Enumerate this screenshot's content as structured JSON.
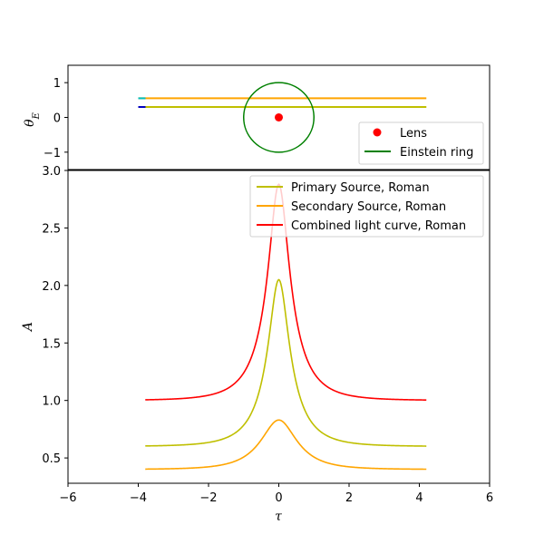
{
  "chart_data": [
    {
      "type": "line",
      "panel": "top",
      "xlabel": "",
      "ylabel": "θ_E",
      "ylabel_main": "θ",
      "ylabel_sub": "E",
      "xlim": [
        -6,
        6
      ],
      "ylim": [
        -1.5,
        1.5
      ],
      "yticks": [
        -1,
        0,
        1
      ],
      "ytick_labels": [
        "−1",
        "0",
        "1"
      ],
      "series": [
        {
          "name": "Lens",
          "kind": "point",
          "x": 0,
          "y": 0,
          "color": "#ff0000"
        },
        {
          "name": "Einstein ring",
          "kind": "circle",
          "cx": 0,
          "cy": 0,
          "r": 1,
          "color": "#008000"
        }
      ],
      "unlabeled_tracks": [
        {
          "x": [
            -4.0,
            4.2
          ],
          "y": 0.55,
          "color": "#ffa500",
          "start_color": "#00bfbf"
        },
        {
          "x": [
            -4.0,
            4.2
          ],
          "y": 0.3,
          "color": "#bfbf00",
          "start_color": "#0000bf"
        }
      ],
      "legend": {
        "placement": "lower-right",
        "entries": [
          "Lens",
          "Einstein ring"
        ]
      },
      "grid": false
    },
    {
      "type": "line",
      "panel": "bottom",
      "xlabel": "τ",
      "ylabel": "A",
      "xlim": [
        -6,
        6
      ],
      "ylim": [
        0.28,
        3.0
      ],
      "xticks": [
        -6,
        -4,
        -2,
        0,
        2,
        4,
        6
      ],
      "xtick_labels": [
        "−6",
        "−4",
        "−2",
        "0",
        "2",
        "4",
        "6"
      ],
      "yticks": [
        0.5,
        1.0,
        1.5,
        2.0,
        2.5,
        3.0
      ],
      "ytick_labels": [
        "0.5",
        "1.0",
        "1.5",
        "2.0",
        "2.5",
        "3.0"
      ],
      "x_range": [
        -3.8,
        4.2
      ],
      "series": [
        {
          "name": "Primary Source, Roman",
          "color": "#bfbf00",
          "baseline": 0.6,
          "peak": 2.05,
          "u0": 0.3
        },
        {
          "name": "Secondary Source, Roman",
          "color": "#ffa500",
          "baseline": 0.4,
          "peak": 0.83,
          "u0": 0.55
        },
        {
          "name": "Combined light curve, Roman",
          "color": "#ff0000",
          "baseline": 1.0,
          "peak": 2.88,
          "u0": 0.3
        }
      ],
      "legend": {
        "placement": "upper-right",
        "entries": [
          "Primary Source, Roman",
          "Secondary Source, Roman",
          "Combined light curve, Roman"
        ]
      },
      "grid": false
    }
  ]
}
